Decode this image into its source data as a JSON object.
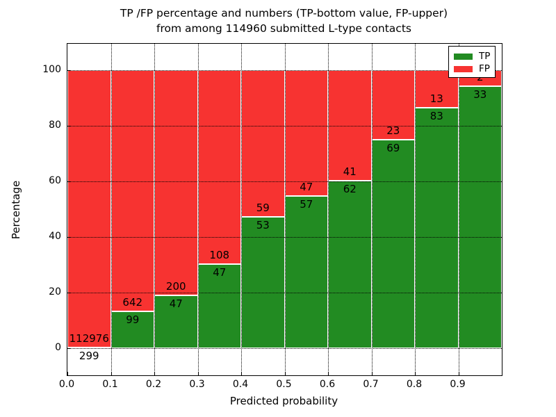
{
  "title": {
    "line1": "TP /FP percentage and numbers (TP-bottom value, FP-upper)",
    "line2": "from among 114960 submitted L-type contacts"
  },
  "axes": {
    "xlabel": "Predicted probability",
    "ylabel": "Percentage",
    "x_tick_labels": [
      "0.0",
      "0.1",
      "0.2",
      "0.3",
      "0.4",
      "0.5",
      "0.6",
      "0.7",
      "0.8",
      "0.9"
    ],
    "y_tick_labels": [
      "0",
      "20",
      "40",
      "60",
      "80",
      "100"
    ],
    "y_tick_values": [
      0,
      20,
      40,
      60,
      80,
      100
    ]
  },
  "legend": {
    "items": [
      {
        "label": "TP",
        "color": "#228b22"
      },
      {
        "label": "FP",
        "color": "#f73331"
      }
    ]
  },
  "colors": {
    "tp": "#228b22",
    "fp": "#f73331",
    "bar_edge": "#ffffff",
    "grid": "#000000"
  },
  "chart_data": {
    "type": "bar",
    "stacked": true,
    "normalized_to": 100,
    "title": "TP /FP percentage and numbers (TP-bottom value, FP-upper) from among 114960 submitted L-type contacts",
    "xlabel": "Predicted probability",
    "ylabel": "Percentage",
    "xlim": [
      0.0,
      1.0
    ],
    "grid": true,
    "legend_position": "upper right",
    "total_contacts": 114960,
    "series_order_note": "TP-bottom value, FP-upper",
    "bins": [
      {
        "x0": 0.0,
        "x1": 0.1,
        "tp": 299,
        "fp": 112976
      },
      {
        "x0": 0.1,
        "x1": 0.2,
        "tp": 99,
        "fp": 642
      },
      {
        "x0": 0.2,
        "x1": 0.3,
        "tp": 47,
        "fp": 200
      },
      {
        "x0": 0.3,
        "x1": 0.4,
        "tp": 47,
        "fp": 108
      },
      {
        "x0": 0.4,
        "x1": 0.5,
        "tp": 53,
        "fp": 59
      },
      {
        "x0": 0.5,
        "x1": 0.6,
        "tp": 57,
        "fp": 47
      },
      {
        "x0": 0.6,
        "x1": 0.7,
        "tp": 62,
        "fp": 41
      },
      {
        "x0": 0.7,
        "x1": 0.8,
        "tp": 69,
        "fp": 23
      },
      {
        "x0": 0.8,
        "x1": 0.9,
        "tp": 83,
        "fp": 13
      },
      {
        "x0": 0.9,
        "x1": 1.0,
        "tp": 33,
        "fp": 2
      }
    ]
  }
}
